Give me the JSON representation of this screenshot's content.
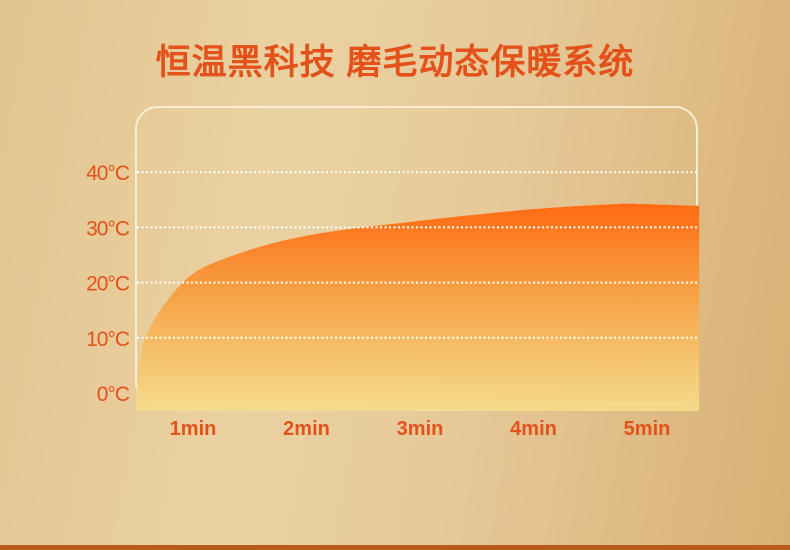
{
  "title": "恒温黑科技 磨毛动态保暖系统",
  "chart_data": {
    "type": "area",
    "title": "恒温黑科技 磨毛动态保暖系统",
    "xlabel": "",
    "ylabel": "",
    "x_tick_labels": [
      "1min",
      "2min",
      "3min",
      "4min",
      "5min"
    ],
    "x_ticks": [
      1,
      2,
      3,
      4,
      5
    ],
    "y_tick_labels": [
      "0°C",
      "10°C",
      "20°C",
      "30°C",
      "40°C"
    ],
    "y_ticks": [
      0,
      10,
      20,
      30,
      40
    ],
    "ylim": [
      0,
      40
    ],
    "xlim": [
      0.5,
      5.46
    ],
    "grid": "horizontal dotted",
    "series": [
      {
        "x": [
          0.5,
          0.58,
          0.91,
          1.3,
          2,
          3,
          4,
          4.7,
          5,
          5.46
        ],
        "y": [
          -1,
          10,
          20,
          24.5,
          28.5,
          31.2,
          33.3,
          34.2,
          34.2,
          33.9
        ]
      }
    ],
    "colors": {
      "text": "#e4511a",
      "fill_top": "#ff6a12",
      "fill_bottom": "#f6dd8a",
      "grid": "#ffffff"
    }
  }
}
